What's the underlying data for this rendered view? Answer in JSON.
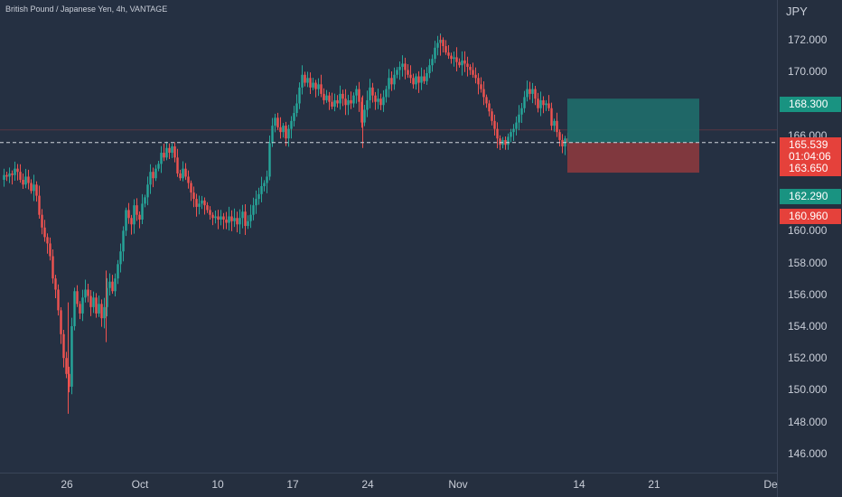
{
  "header": {
    "title": "British Pound / Japanese Yen, 4h, VANTAGE"
  },
  "price_axis": {
    "currency": "JPY",
    "ticks": [
      "172.000",
      "170.000",
      "168.000",
      "166.000",
      "164.000",
      "162.000",
      "160.000",
      "158.000",
      "156.000",
      "154.000",
      "152.000",
      "150.000",
      "148.000",
      "146.000"
    ],
    "tick_values": [
      172,
      170,
      168,
      166,
      164,
      162,
      160,
      158,
      156,
      154,
      152,
      150,
      148,
      146
    ]
  },
  "time_axis": {
    "labels": [
      "26",
      "Oct",
      "10",
      "17",
      "24",
      "Nov",
      "14",
      "21",
      "De"
    ]
  },
  "badges": {
    "take_profit": "168.300",
    "current_price": "165.539",
    "countdown": "01:04:06",
    "stop_loss": "163.650",
    "level_1": "162.290",
    "level_2": "160.960"
  },
  "colors": {
    "background": "#253042",
    "up_candle": "#26a69a",
    "down_candle": "#ef5350",
    "take_profit_zone": "#1f6e6b",
    "stop_loss_zone": "#8b3a3e",
    "price_badge_red": "#e5413b",
    "price_badge_green": "#199381"
  },
  "chart_data": {
    "type": "candlestick",
    "symbol": "British Pound / Japanese Yen",
    "interval": "4h",
    "source": "VANTAGE",
    "ylim": [
      144.8,
      174.5
    ],
    "current_price": 165.539,
    "position": {
      "entry": 165.539,
      "take_profit": 168.3,
      "stop_loss": 163.65
    },
    "close_path": [
      [
        0,
        163.2
      ],
      [
        3,
        163.5
      ],
      [
        6,
        163.4
      ],
      [
        9,
        163.6
      ],
      [
        12,
        163.5
      ],
      [
        15,
        163.9
      ],
      [
        18,
        163.7
      ],
      [
        21,
        163.2
      ],
      [
        24,
        162.9
      ],
      [
        27,
        163.4
      ],
      [
        30,
        163.0
      ],
      [
        33,
        162.5
      ],
      [
        36,
        162.9
      ],
      [
        39,
        162.2
      ],
      [
        42,
        161.0
      ],
      [
        45,
        160.2
      ],
      [
        48,
        159.6
      ],
      [
        51,
        159.2
      ],
      [
        54,
        158.4
      ],
      [
        57,
        157.0
      ],
      [
        60,
        156.3
      ],
      [
        63,
        155.0
      ],
      [
        66,
        153.5
      ],
      [
        69,
        152.0
      ],
      [
        72,
        151.0
      ],
      [
        75,
        150.2
      ],
      [
        78,
        154.0
      ],
      [
        81,
        156.2
      ],
      [
        84,
        155.4
      ],
      [
        87,
        154.8
      ],
      [
        90,
        155.8
      ],
      [
        93,
        156.3
      ],
      [
        96,
        155.9
      ],
      [
        99,
        155.2
      ],
      [
        102,
        155.8
      ],
      [
        105,
        154.8
      ],
      [
        108,
        155.4
      ],
      [
        111,
        154.5
      ],
      [
        114,
        155.2
      ],
      [
        117,
        156.4
      ],
      [
        120,
        156.8
      ],
      [
        123,
        156.2
      ],
      [
        126,
        157.0
      ],
      [
        129,
        157.9
      ],
      [
        132,
        158.7
      ],
      [
        135,
        160.0
      ],
      [
        138,
        161.3
      ],
      [
        141,
        160.8
      ],
      [
        144,
        160.4
      ],
      [
        147,
        161.6
      ],
      [
        150,
        161.0
      ],
      [
        153,
        160.7
      ],
      [
        156,
        161.7
      ],
      [
        159,
        162.1
      ],
      [
        162,
        162.9
      ],
      [
        165,
        163.7
      ],
      [
        168,
        163.3
      ],
      [
        171,
        163.9
      ],
      [
        174,
        164.2
      ],
      [
        177,
        164.9
      ],
      [
        180,
        164.6
      ],
      [
        183,
        165.2
      ],
      [
        186,
        164.9
      ],
      [
        189,
        165.3
      ],
      [
        192,
        164.6
      ],
      [
        195,
        163.6
      ],
      [
        198,
        163.3
      ],
      [
        201,
        163.9
      ],
      [
        204,
        163.4
      ],
      [
        207,
        163.0
      ],
      [
        210,
        162.4
      ],
      [
        213,
        162.0
      ],
      [
        216,
        161.5
      ],
      [
        219,
        161.7
      ],
      [
        222,
        161.9
      ],
      [
        225,
        161.6
      ],
      [
        228,
        161.3
      ],
      [
        231,
        161.0
      ],
      [
        234,
        160.8
      ],
      [
        237,
        160.9
      ],
      [
        240,
        160.7
      ],
      [
        243,
        160.9
      ],
      [
        246,
        160.7
      ],
      [
        249,
        160.5
      ],
      [
        252,
        160.9
      ],
      [
        255,
        160.6
      ],
      [
        258,
        160.8
      ],
      [
        261,
        160.4
      ],
      [
        264,
        160.8
      ],
      [
        267,
        161.2
      ],
      [
        270,
        160.3
      ],
      [
        273,
        160.6
      ],
      [
        276,
        161.0
      ],
      [
        279,
        161.6
      ],
      [
        282,
        162.0
      ],
      [
        285,
        162.3
      ],
      [
        288,
        162.8
      ],
      [
        291,
        163.0
      ],
      [
        294,
        163.4
      ],
      [
        297,
        165.5
      ],
      [
        300,
        166.6
      ],
      [
        303,
        167.1
      ],
      [
        306,
        166.5
      ],
      [
        309,
        166.2
      ],
      [
        312,
        166.6
      ],
      [
        315,
        165.8
      ],
      [
        318,
        166.4
      ],
      [
        321,
        166.9
      ],
      [
        324,
        167.4
      ],
      [
        327,
        168.0
      ],
      [
        330,
        169.0
      ],
      [
        333,
        169.8
      ],
      [
        336,
        169.3
      ],
      [
        339,
        169.6
      ],
      [
        342,
        169.0
      ],
      [
        345,
        169.3
      ],
      [
        348,
        168.9
      ],
      [
        351,
        169.2
      ],
      [
        354,
        168.6
      ],
      [
        357,
        168.2
      ],
      [
        360,
        168.5
      ],
      [
        363,
        168.1
      ],
      [
        366,
        167.8
      ],
      [
        369,
        168.2
      ],
      [
        372,
        168.0
      ],
      [
        375,
        168.6
      ],
      [
        378,
        168.3
      ],
      [
        381,
        167.9
      ],
      [
        384,
        168.2
      ],
      [
        387,
        168.0
      ],
      [
        390,
        168.5
      ],
      [
        393,
        168.9
      ],
      [
        396,
        168.1
      ],
      [
        399,
        166.8
      ],
      [
        402,
        167.6
      ],
      [
        405,
        168.2
      ],
      [
        408,
        169.0
      ],
      [
        411,
        168.5
      ],
      [
        414,
        168.1
      ],
      [
        417,
        168.3
      ],
      [
        420,
        167.9
      ],
      [
        423,
        168.4
      ],
      [
        426,
        168.9
      ],
      [
        429,
        169.6
      ],
      [
        432,
        169.2
      ],
      [
        435,
        169.8
      ],
      [
        438,
        170.1
      ],
      [
        441,
        170.3
      ],
      [
        444,
        170.5
      ],
      [
        447,
        170.1
      ],
      [
        450,
        169.8
      ],
      [
        453,
        169.6
      ],
      [
        456,
        169.2
      ],
      [
        459,
        169.7
      ],
      [
        462,
        169.3
      ],
      [
        465,
        169.7
      ],
      [
        468,
        169.4
      ],
      [
        471,
        169.9
      ],
      [
        474,
        170.4
      ],
      [
        477,
        170.8
      ],
      [
        480,
        171.5
      ],
      [
        483,
        171.8
      ],
      [
        486,
        172.0
      ],
      [
        489,
        171.6
      ],
      [
        492,
        171.2
      ],
      [
        495,
        171.0
      ],
      [
        498,
        170.8
      ],
      [
        501,
        170.9
      ],
      [
        504,
        170.6
      ],
      [
        507,
        170.4
      ],
      [
        510,
        170.7
      ],
      [
        513,
        170.5
      ],
      [
        516,
        170.3
      ],
      [
        519,
        170.1
      ],
      [
        522,
        169.8
      ],
      [
        525,
        169.6
      ],
      [
        528,
        169.2
      ],
      [
        531,
        168.9
      ],
      [
        534,
        168.4
      ],
      [
        537,
        168.0
      ],
      [
        540,
        167.5
      ],
      [
        543,
        166.9
      ],
      [
        546,
        166.4
      ],
      [
        549,
        165.8
      ],
      [
        552,
        165.4
      ],
      [
        555,
        165.7
      ],
      [
        558,
        165.4
      ],
      [
        561,
        165.9
      ],
      [
        564,
        166.2
      ],
      [
        567,
        166.4
      ],
      [
        570,
        166.8
      ],
      [
        573,
        167.3
      ],
      [
        576,
        167.7
      ],
      [
        579,
        168.4
      ],
      [
        582,
        168.9
      ],
      [
        585,
        168.6
      ],
      [
        588,
        168.9
      ],
      [
        591,
        168.3
      ],
      [
        594,
        167.7
      ],
      [
        597,
        168.2
      ],
      [
        600,
        167.9
      ],
      [
        603,
        168.0
      ],
      [
        606,
        167.7
      ],
      [
        609,
        166.6
      ],
      [
        612,
        166.9
      ],
      [
        615,
        166.2
      ],
      [
        618,
        165.7
      ],
      [
        621,
        165.3
      ],
      [
        624,
        165.8
      ],
      [
        627,
        165.539
      ]
    ],
    "anomalies": [
      {
        "x": 74,
        "low": 148.5,
        "high": 155.5
      },
      {
        "x": 116,
        "low": 153.0,
        "high": 157.5
      },
      {
        "x": 400,
        "low": 165.2,
        "high": 168.5
      },
      {
        "x": 486,
        "low": 171.0,
        "high": 172.3
      }
    ]
  }
}
